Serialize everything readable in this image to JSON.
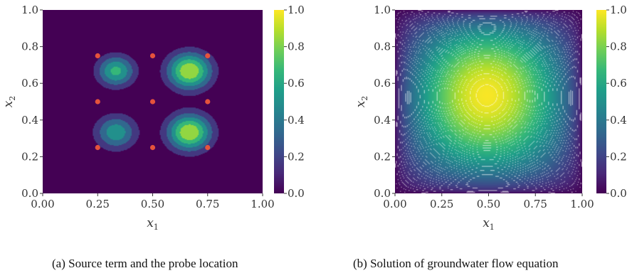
{
  "colors": {
    "viridis": [
      "#440154",
      "#482878",
      "#3e4989",
      "#31688e",
      "#26828e",
      "#1f9e89",
      "#35b779",
      "#6ece58",
      "#b5de2b",
      "#fde725"
    ],
    "probe": "#e5533c",
    "contour_line": "#ffffff"
  },
  "captions": {
    "a": "(a) Source term and the probe location",
    "b": "(b) Solution of groundwater flow equation"
  },
  "chart_data": [
    {
      "type": "heatmap",
      "id": "a",
      "title": "",
      "xlabel": "x",
      "xlabel_sub": "1",
      "ylabel": "x",
      "ylabel_sub": "2",
      "xlim": [
        0,
        1
      ],
      "ylim": [
        0,
        1
      ],
      "xticks": [
        0.0,
        0.25,
        0.5,
        0.75,
        1.0
      ],
      "xtick_labels": [
        "0.00",
        "0.25",
        "0.50",
        "0.75",
        "1.00"
      ],
      "yticks": [
        0.0,
        0.2,
        0.4,
        0.6,
        0.8,
        1.0
      ],
      "ytick_labels": [
        "0.0",
        "0.2",
        "0.4",
        "0.6",
        "0.8",
        "1.0"
      ],
      "colorbar": {
        "range": [
          0,
          1
        ],
        "ticks": [
          0.0,
          0.2,
          0.4,
          0.6,
          0.8,
          1.0
        ],
        "tick_labels": [
          "0.0",
          "0.2",
          "0.4",
          "0.6",
          "0.8",
          "1.0"
        ]
      },
      "field": {
        "kind": "filled-contour",
        "levels": 6,
        "peaks": [
          {
            "x": 0.333,
            "y": 0.667,
            "amp": 0.72,
            "sigma": 0.06
          },
          {
            "x": 0.667,
            "y": 0.667,
            "amp": 1.0,
            "sigma": 0.07
          },
          {
            "x": 0.333,
            "y": 0.333,
            "amp": 0.62,
            "sigma": 0.065
          },
          {
            "x": 0.667,
            "y": 0.333,
            "amp": 1.0,
            "sigma": 0.07
          }
        ]
      },
      "probes": [
        {
          "x": 0.25,
          "y": 0.75
        },
        {
          "x": 0.5,
          "y": 0.75
        },
        {
          "x": 0.75,
          "y": 0.75
        },
        {
          "x": 0.25,
          "y": 0.5
        },
        {
          "x": 0.5,
          "y": 0.5
        },
        {
          "x": 0.75,
          "y": 0.5
        },
        {
          "x": 0.25,
          "y": 0.25
        },
        {
          "x": 0.5,
          "y": 0.25
        },
        {
          "x": 0.75,
          "y": 0.25
        }
      ]
    },
    {
      "type": "heatmap",
      "id": "b",
      "title": "",
      "xlabel": "x",
      "xlabel_sub": "1",
      "ylabel": "x",
      "ylabel_sub": "2",
      "xlim": [
        0,
        1
      ],
      "ylim": [
        0,
        1
      ],
      "xticks": [
        0.0,
        0.25,
        0.5,
        0.75,
        1.0
      ],
      "xtick_labels": [
        "0.00",
        "0.25",
        "0.50",
        "0.75",
        "1.00"
      ],
      "yticks": [
        0.0,
        0.2,
        0.4,
        0.6,
        0.8,
        1.0
      ],
      "ytick_labels": [
        "0.0",
        "0.2",
        "0.4",
        "0.6",
        "0.8",
        "1.0"
      ],
      "colorbar": {
        "range": [
          0,
          1
        ],
        "ticks": [
          0.0,
          0.2,
          0.4,
          0.6,
          0.8,
          1.0
        ],
        "tick_labels": [
          "0.0",
          "0.2",
          "0.4",
          "0.6",
          "0.8",
          "1.0"
        ]
      },
      "field": {
        "kind": "filled-contour-with-lines",
        "levels": 40,
        "maximum": {
          "x": 0.48,
          "y": 0.58,
          "value": 1.0
        },
        "boundary_value": 0.0
      }
    }
  ]
}
